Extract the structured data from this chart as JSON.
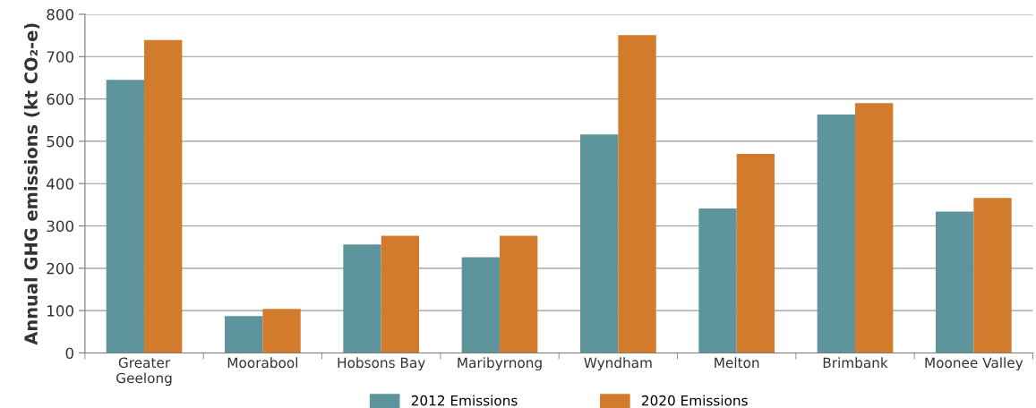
{
  "chart_data": {
    "type": "bar",
    "ylabel": "Annual GHG emissions (kt CO₂-e)",
    "categories": [
      "Greater\nGeelong",
      "Moorabool",
      "Hobsons Bay",
      "Maribyrnong",
      "Wyndham",
      "Melton",
      "Brimbank",
      "Moonee Valley"
    ],
    "series": [
      {
        "name": "2012 Emissions",
        "color": "#5e949c",
        "values": [
          645,
          87,
          256,
          226,
          516,
          341,
          563,
          334
        ]
      },
      {
        "name": "2020 Emissions",
        "color": "#d27b2c",
        "values": [
          739,
          104,
          277,
          277,
          751,
          470,
          590,
          366
        ]
      }
    ],
    "ylim": [
      0,
      800
    ],
    "yticks": [
      0,
      100,
      200,
      300,
      400,
      500,
      600,
      700,
      800
    ],
    "grid": "y",
    "legend": "bottom"
  }
}
